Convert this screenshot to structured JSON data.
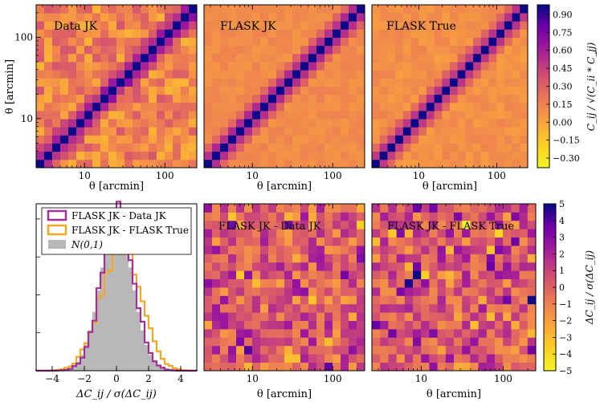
{
  "chart_data": [
    {
      "type": "heatmap",
      "id": "data-jk",
      "title": "Data JK",
      "xlabel": "θ [arcmin]",
      "ylabel": "θ [arcmin]",
      "xticks": [
        "10",
        "100"
      ],
      "yticks": [
        "10",
        "100"
      ],
      "bins": 20,
      "diagonal": 1.0,
      "offdiag_level": 0.15,
      "noise_amp": 0.22,
      "seed": 11,
      "nearband": [
        0.6,
        0.35
      ]
    },
    {
      "type": "heatmap",
      "id": "flask-jk",
      "title": "FLASK JK",
      "xlabel": "θ [arcmin]",
      "xticks": [
        "10",
        "100"
      ],
      "bins": 20,
      "diagonal": 1.0,
      "offdiag_level": 0.12,
      "noise_amp": 0.05,
      "seed": 23,
      "nearband": [
        0.55,
        0.3
      ]
    },
    {
      "type": "heatmap",
      "id": "flask-true",
      "title": "FLASK True",
      "xlabel": "θ [arcmin]",
      "xticks": [
        "10",
        "100"
      ],
      "bins": 20,
      "diagonal": 1.0,
      "offdiag_level": 0.1,
      "noise_amp": 0.06,
      "seed": 37,
      "nearband": [
        0.5,
        0.28
      ]
    },
    {
      "type": "colorbar",
      "id": "corr-colorbar",
      "label": "C_ij / √(C_ii * C_jj)",
      "range": [
        -0.38,
        0.98
      ],
      "ticks": [
        "0.90",
        "0.75",
        "0.60",
        "0.45",
        "0.30",
        "0.15",
        "0.00",
        "−0.15",
        "−0.30"
      ],
      "tick_values": [
        0.9,
        0.75,
        0.6,
        0.45,
        0.3,
        0.15,
        0.0,
        -0.15,
        -0.3
      ]
    },
    {
      "type": "histogram",
      "id": "delta-hist",
      "xlabel": "ΔC_ij / σ(ΔC_ij)",
      "xlim": [
        -5,
        5
      ],
      "xticks": [
        "−4",
        "−2",
        "0",
        "2",
        "4"
      ],
      "xtick_values": [
        -4,
        -2,
        0,
        2,
        4
      ],
      "bin_width": 0.25,
      "legend": [
        {
          "label": "FLASK JK - Data JK",
          "color": "#a3309a"
        },
        {
          "label": "FLASK JK - FLASK True",
          "color": "#f5a623"
        },
        {
          "label": "N(0,1)",
          "color": "#b8b8b8"
        }
      ],
      "series": [
        {
          "name": "FLASK JK - Data JK",
          "color": "#a3309a",
          "mean": 0.05,
          "sigma": 1.0,
          "seed": 5
        },
        {
          "name": "FLASK JK - FLASK True",
          "color": "#f5a623",
          "mean": 0.2,
          "sigma": 1.2,
          "seed": 9
        },
        {
          "name": "N(0,1)",
          "color": "#b8b8b8",
          "mean": 0.0,
          "sigma": 1.0
        }
      ]
    },
    {
      "type": "heatmap",
      "id": "diff-data",
      "title": "FLASK JK - Data JK",
      "xlabel": "θ [arcmin]",
      "xticks": [
        "10",
        "100"
      ],
      "bins": 20,
      "noise_amp": 1.6,
      "offdiag_level": 0.6,
      "seed": 71,
      "vmin": -5,
      "vmax": 5
    },
    {
      "type": "heatmap",
      "id": "diff-true",
      "title": "FLASK JK - FLASK True",
      "xlabel": "θ [arcmin]",
      "xticks": [
        "10",
        "100"
      ],
      "bins": 20,
      "noise_amp": 1.6,
      "offdiag_level": 0.9,
      "seed": 89,
      "vmin": -5,
      "vmax": 5
    },
    {
      "type": "colorbar",
      "id": "diff-colorbar",
      "label": "ΔC_ij / σ(ΔC_ij)",
      "range": [
        -5,
        5
      ],
      "ticks": [
        "5",
        "4",
        "3",
        "2",
        "1",
        "0",
        "−1",
        "−2",
        "−3",
        "−4",
        "−5"
      ],
      "tick_values": [
        5,
        4,
        3,
        2,
        1,
        0,
        -1,
        -2,
        -3,
        -4,
        -5
      ]
    }
  ]
}
